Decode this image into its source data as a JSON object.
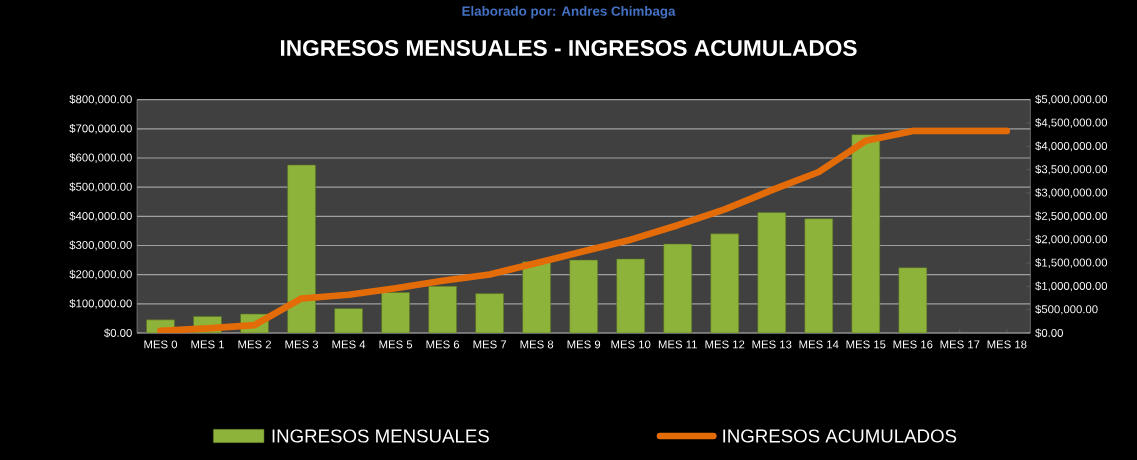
{
  "chart_data": {
    "type": "bar",
    "title": "INGRESOS MENSUALES - INGRESOS ACUMULADOS",
    "annotations": [
      "Elaborado por: Andres Chimbaga"
    ],
    "categories": [
      "MES 0",
      "MES 1",
      "MES 2",
      "MES 3",
      "MES 4",
      "MES 5",
      "MES 6",
      "MES 7",
      "MES 8",
      "MES 9",
      "MES 10",
      "MES 11",
      "MES 12",
      "MES 13",
      "MES 14",
      "MES 15",
      "MES 16",
      "MES 17",
      "MES 18"
    ],
    "series": [
      {
        "name": "INGRESOS MENSUALES",
        "color": "#8db33a",
        "values": [
          45000,
          57000,
          65000,
          576000,
          84000,
          139000,
          160000,
          135000,
          244000,
          250000,
          254000,
          305000,
          340000,
          413000,
          392000,
          680000,
          224000,
          null,
          null
        ]
      },
      {
        "name": "INGRESOS ACUMULADOS",
        "type": "line",
        "axis": "y2",
        "color": "#e36c09",
        "values": [
          45000,
          100000,
          170000,
          740000,
          820000,
          960000,
          1120000,
          1255000,
          1500000,
          1750000,
          2000000,
          2310000,
          2650000,
          3060000,
          3450000,
          4120000,
          4330000,
          4330000,
          4330000
        ]
      }
    ],
    "ylim": [
      0,
      800000
    ],
    "yticks": [
      {
        "value": 0,
        "label": "$0.00"
      },
      {
        "value": 100000,
        "label": "$100,000.00"
      },
      {
        "value": 200000,
        "label": "$200,000.00"
      },
      {
        "value": 300000,
        "label": "$300,000.00"
      },
      {
        "value": 400000,
        "label": "$400,000.00"
      },
      {
        "value": 500000,
        "label": "$500,000.00"
      },
      {
        "value": 600000,
        "label": "$600,000.00"
      },
      {
        "value": 700000,
        "label": "$700,000.00"
      },
      {
        "value": 800000,
        "label": "$800,000.00"
      }
    ],
    "y2lim": [
      0,
      5000000
    ],
    "y2ticks": [
      {
        "value": 0,
        "label": "$0.00"
      },
      {
        "value": 500000,
        "label": "$500,000.00"
      },
      {
        "value": 1000000,
        "label": "$1,000,000.00"
      },
      {
        "value": 1500000,
        "label": "$1,500,000.00"
      },
      {
        "value": 2000000,
        "label": "$2,000,000.00"
      },
      {
        "value": 2500000,
        "label": "$2,500,000.00"
      },
      {
        "value": 3000000,
        "label": "$3,000,000.00"
      },
      {
        "value": 3500000,
        "label": "$3,500,000.00"
      },
      {
        "value": 4000000,
        "label": "$4,000,000.00"
      },
      {
        "value": 4500000,
        "label": "$4,500,000.00"
      },
      {
        "value": 5000000,
        "label": "$5,000,000.00"
      }
    ],
    "grid": "y",
    "legend": "bottom"
  }
}
